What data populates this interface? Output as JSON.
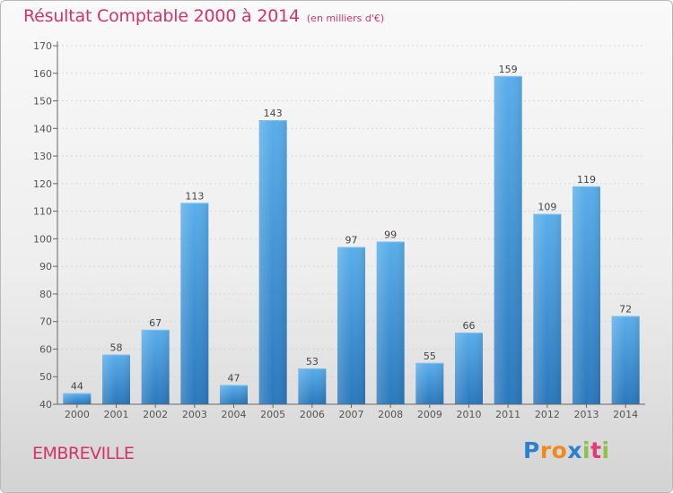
{
  "chart_data": {
    "type": "bar",
    "title": "Résultat Comptable 2000 à 2014",
    "subtitle": "(en milliers d'€)",
    "categories": [
      "2000",
      "2001",
      "2002",
      "2003",
      "2004",
      "2005",
      "2006",
      "2007",
      "2008",
      "2009",
      "2010",
      "2011",
      "2012",
      "2013",
      "2014"
    ],
    "values": [
      44,
      58,
      67,
      113,
      47,
      143,
      53,
      97,
      99,
      55,
      66,
      159,
      109,
      119,
      72
    ],
    "ylim": [
      40,
      170
    ],
    "yticks": [
      40,
      50,
      60,
      70,
      80,
      90,
      100,
      110,
      120,
      130,
      140,
      150,
      160,
      170
    ],
    "xlabel": "",
    "ylabel": "",
    "grid": true,
    "bar_color": "#4a9fe0"
  },
  "location": "EMBREVILLE",
  "logo": {
    "letters": [
      "P",
      "r",
      "o",
      "x",
      "i",
      "t",
      "i"
    ],
    "colors": [
      "#2f7fd0",
      "#f08a1c",
      "#f08a1c",
      "#2f7fd0",
      "#8bc34a",
      "#e23b7a",
      "#8bc34a"
    ]
  }
}
